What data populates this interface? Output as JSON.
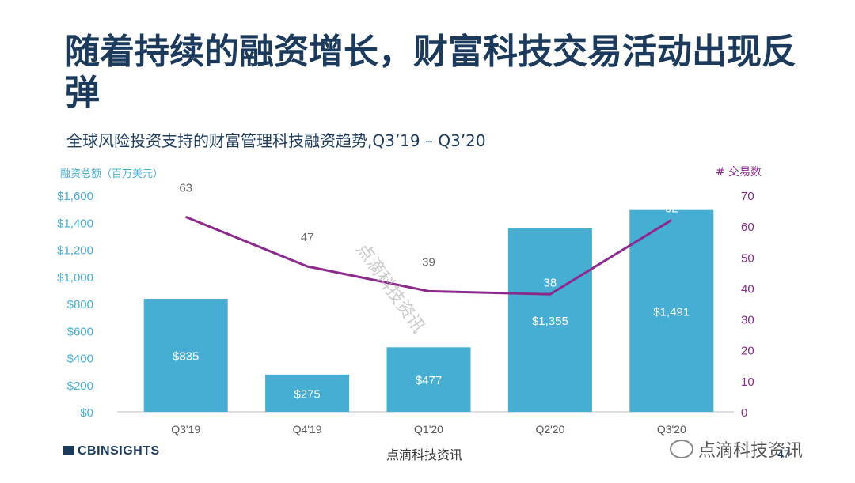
{
  "title": "随着持续的融资增长，财富科技交易活动出现反弹",
  "subtitle": "全球风险投资支持的财富管理科技融资趋势,Q3’19 – Q3’20",
  "watermark": "点滴科技资讯",
  "footer": {
    "logo": "CBINSIGHTS",
    "center": "点滴科技资讯",
    "wechat": "点滴科技资讯",
    "page": "47"
  },
  "colors": {
    "bar": "#46aed3",
    "line": "#8b2a8c",
    "left_axis": "#46aed3",
    "right_axis": "#8b2a8c",
    "title": "#1b3a5c"
  },
  "chart_data": {
    "type": "bar",
    "categories": [
      "Q3'19",
      "Q4'19",
      "Q1'20",
      "Q2'20",
      "Q3'20"
    ],
    "series": [
      {
        "type": "bar",
        "axis": "left",
        "values": [
          835,
          275,
          477,
          1355,
          1491
        ],
        "data_labels": [
          "$835",
          "$275",
          "$477",
          "$1,355",
          "$1,491"
        ]
      },
      {
        "type": "line",
        "axis": "right",
        "values": [
          63,
          47,
          39,
          38,
          62
        ],
        "data_labels": [
          "63",
          "47",
          "39",
          "38",
          "62"
        ]
      }
    ],
    "ylabel": "融资总额（百万美元）",
    "y2label": "# 交易数",
    "ylim": [
      0,
      1600
    ],
    "y2lim": [
      0,
      70
    ],
    "y_ticks": [
      "$0",
      "$200",
      "$400",
      "$600",
      "$800",
      "$1,000",
      "$1,200",
      "$1,400",
      "$1,600"
    ],
    "y2_ticks": [
      "0",
      "10",
      "20",
      "30",
      "40",
      "50",
      "60",
      "70"
    ],
    "grid": false
  }
}
